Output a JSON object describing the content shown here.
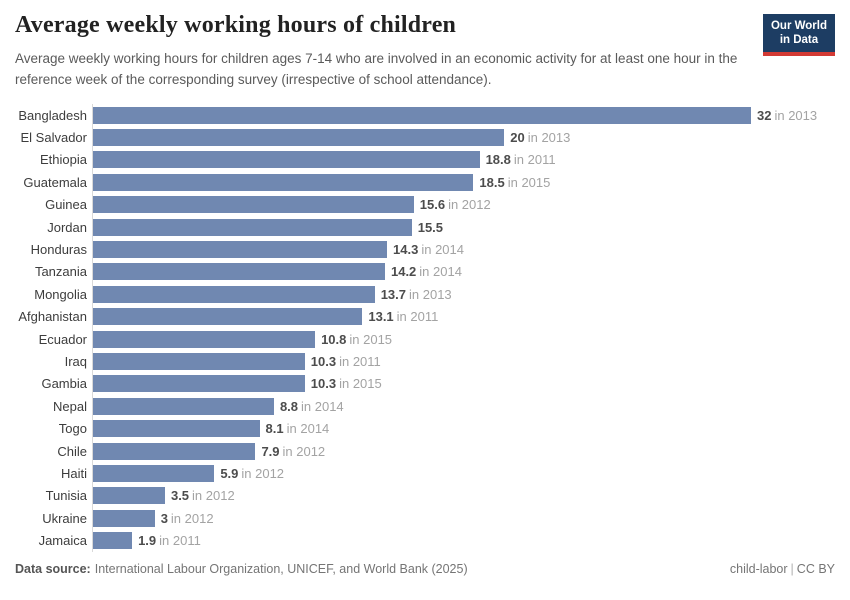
{
  "header": {
    "title": "Average weekly working hours of children",
    "subtitle": "Average weekly working hours for children ages 7-14 who are involved in an economic activity for at least one hour in the reference week of the corresponding survey (irrespective of school attendance)."
  },
  "logo": {
    "line1": "Our World",
    "line2": "in Data",
    "bg_color": "#1d3d63",
    "accent_color": "#d33a34"
  },
  "chart_data": {
    "type": "bar",
    "orientation": "horizontal",
    "title": "Average weekly working hours of children",
    "xlabel": "",
    "ylabel": "",
    "xlim": [
      0,
      32
    ],
    "grid": false,
    "legend": "none",
    "bar_color": "#7088b1",
    "axis_line_color": "#d9d9d9",
    "categories": [
      "Bangladesh",
      "El Salvador",
      "Ethiopia",
      "Guatemala",
      "Guinea",
      "Jordan",
      "Honduras",
      "Tanzania",
      "Mongolia",
      "Afghanistan",
      "Ecuador",
      "Iraq",
      "Gambia",
      "Nepal",
      "Togo",
      "Chile",
      "Haiti",
      "Tunisia",
      "Ukraine",
      "Jamaica"
    ],
    "values": [
      32,
      20,
      18.8,
      18.5,
      15.6,
      15.5,
      14.3,
      14.2,
      13.7,
      13.1,
      10.8,
      10.3,
      10.3,
      8.8,
      8.1,
      7.9,
      5.9,
      3.5,
      3,
      1.9
    ],
    "value_labels": [
      "32",
      "20",
      "18.8",
      "18.5",
      "15.6",
      "15.5",
      "14.3",
      "14.2",
      "13.7",
      "13.1",
      "10.8",
      "10.3",
      "10.3",
      "8.8",
      "8.1",
      "7.9",
      "5.9",
      "3.5",
      "3",
      "1.9"
    ],
    "year_labels": [
      "in 2013",
      "in 2013",
      "in 2011",
      "in 2015",
      "in 2012",
      "",
      "in 2014",
      "in 2014",
      "in 2013",
      "in 2011",
      "in 2015",
      "in 2011",
      "in 2015",
      "in 2014",
      "in 2014",
      "in 2012",
      "in 2012",
      "in 2012",
      "in 2012",
      "in 2011"
    ]
  },
  "footer": {
    "source_label": "Data source:",
    "source_text": "International Labour Organization, UNICEF, and World Bank (2025)",
    "slug": "child-labor",
    "separator": "|",
    "license": "CC BY"
  }
}
